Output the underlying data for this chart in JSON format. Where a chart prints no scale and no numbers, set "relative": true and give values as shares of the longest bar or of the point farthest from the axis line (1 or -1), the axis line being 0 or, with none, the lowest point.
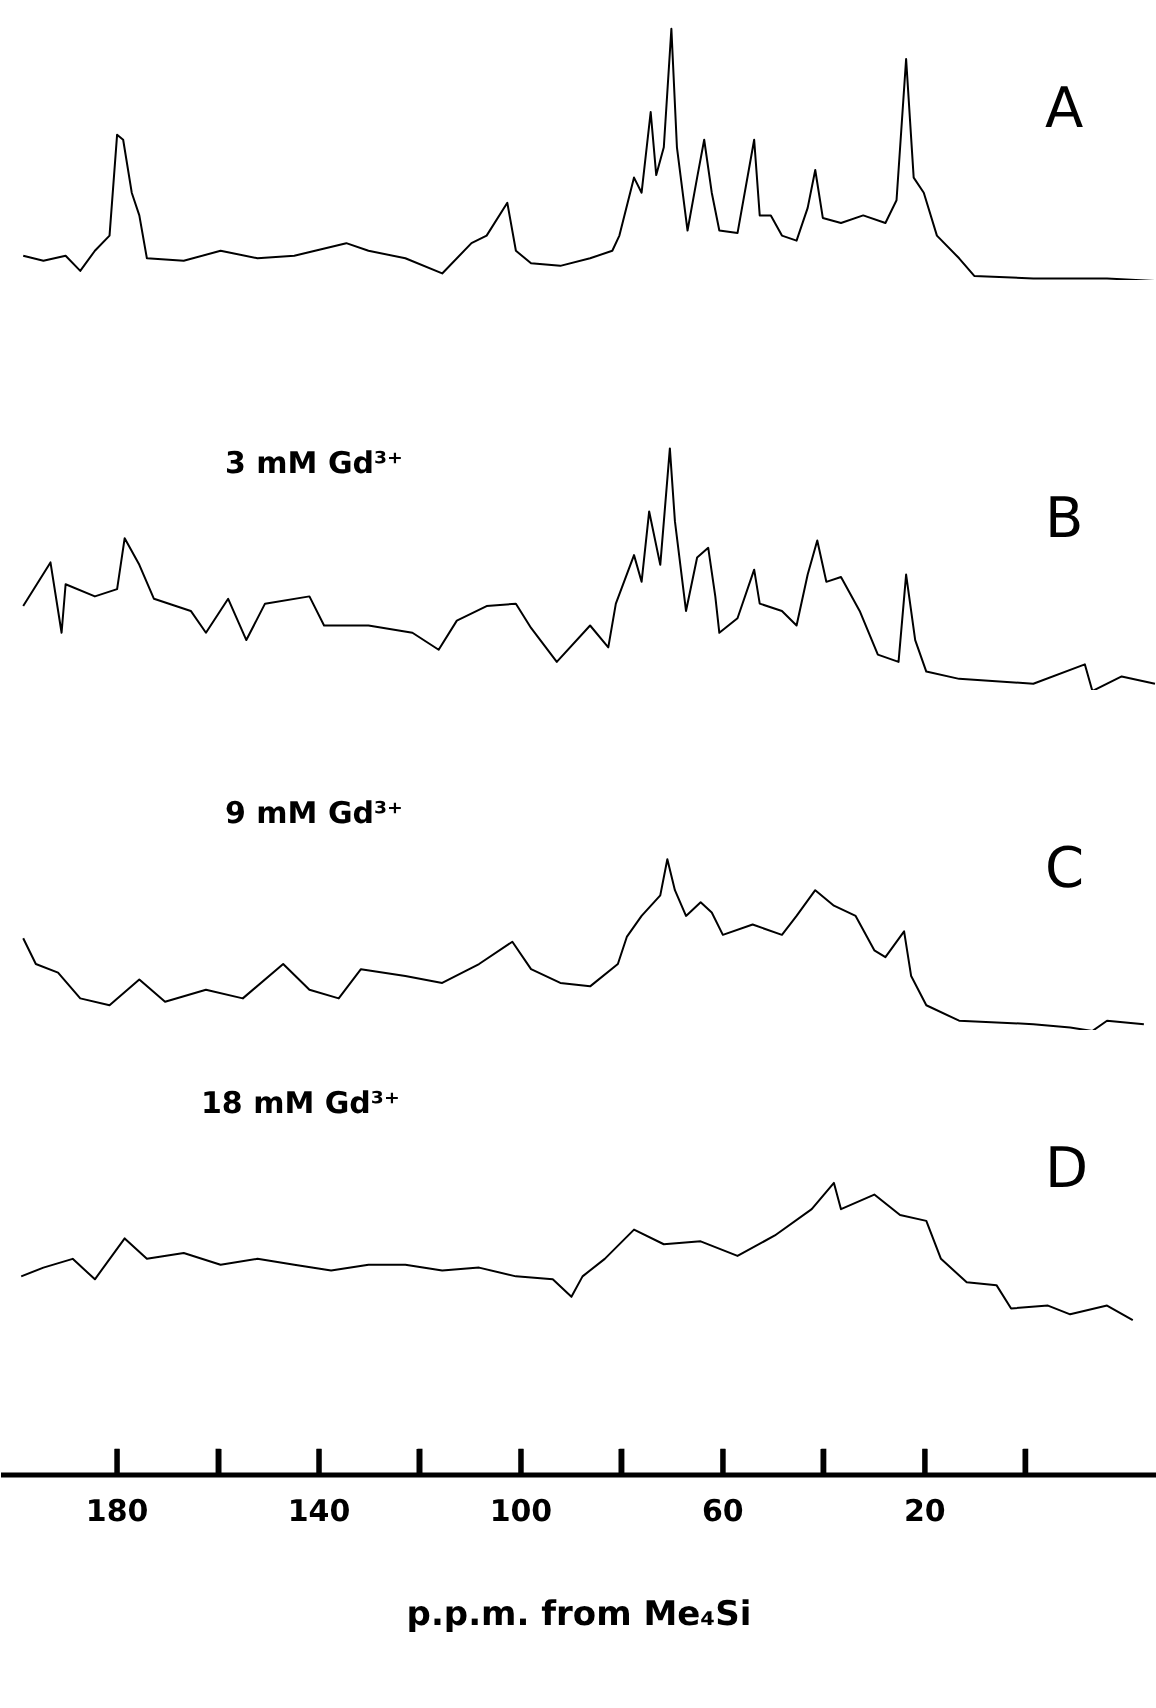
{
  "chart_data": [
    {
      "type": "line",
      "relative": true,
      "tick_labels": false,
      "xlim": [
        203,
        -26
      ],
      "annotations": [
        "A"
      ],
      "x": [
        198.6,
        194.6,
        190.2,
        187.3,
        184.4,
        181.5,
        180,
        178.8,
        177.1,
        175.6,
        174.1,
        166.8,
        159.5,
        152.2,
        144.9,
        134.6,
        130.2,
        122.9,
        115.6,
        109.8,
        106.8,
        102.7,
        101.0,
        98.0,
        92.2,
        86.3,
        81.9,
        80.5,
        77.6,
        76.1,
        74.3,
        73.2,
        71.7,
        70.2,
        69.1,
        67.0,
        65.1,
        63.7,
        62.2,
        60.7,
        57.1,
        53.8,
        52.7,
        50.5,
        48.3,
        45.4,
        43.2,
        41.7,
        40.2,
        36.6,
        32.2,
        27.8,
        25.6,
        23.7,
        22.2,
        20.2,
        17.6,
        13.2,
        10.2,
        -1.5,
        -16.1,
        -25.6
      ],
      "series": [
        {
          "color": "#000000",
          "values": [
            0.1,
            0.08,
            0.1,
            0.04,
            0.12,
            0.18,
            0.58,
            0.56,
            0.35,
            0.26,
            0.09,
            0.08,
            0.12,
            0.09,
            0.1,
            0.15,
            0.12,
            0.09,
            0.03,
            0.15,
            0.18,
            0.31,
            0.12,
            0.07,
            0.06,
            0.09,
            0.12,
            0.18,
            0.41,
            0.35,
            0.67,
            0.42,
            0.53,
            1,
            0.53,
            0.2,
            0.41,
            0.56,
            0.35,
            0.2,
            0.19,
            0.56,
            0.26,
            0.26,
            0.18,
            0.16,
            0.29,
            0.44,
            0.25,
            0.23,
            0.26,
            0.23,
            0.32,
            0.88,
            0.41,
            0.35,
            0.18,
            0.09,
            0.02,
            0.01,
            0.01,
            0
          ]
        }
      ]
    },
    {
      "type": "line",
      "relative": true,
      "tick_labels": false,
      "xlim": [
        203,
        -26
      ],
      "annotations": [
        "B",
        "3 mM Gd³⁺"
      ],
      "x": [
        198.6,
        193.2,
        191.0,
        190.2,
        184.4,
        180,
        178.5,
        175.6,
        172.7,
        165.4,
        162.4,
        158.0,
        154.4,
        150.7,
        141.9,
        139.0,
        130.2,
        121.5,
        116.3,
        112.7,
        106.8,
        101.0,
        98.0,
        92.9,
        86.3,
        82.7,
        81.2,
        77.6,
        76.1,
        74.6,
        72.4,
        70.5,
        69.5,
        67.3,
        65.1,
        62.9,
        61.5,
        60.7,
        57.1,
        53.8,
        52.7,
        48.3,
        45.4,
        43.2,
        41.3,
        39.5,
        36.6,
        32.9,
        29.3,
        25.2,
        23.7,
        21.9,
        19.7,
        13.2,
        -1.5,
        -11.7,
        -13.2,
        -19.0,
        -25.6
      ],
      "series": [
        {
          "color": "#000000",
          "values": [
            0.35,
            0.53,
            0.24,
            0.44,
            0.39,
            0.42,
            0.63,
            0.52,
            0.38,
            0.33,
            0.24,
            0.38,
            0.21,
            0.36,
            0.39,
            0.27,
            0.27,
            0.24,
            0.17,
            0.29,
            0.35,
            0.36,
            0.26,
            0.12,
            0.27,
            0.18,
            0.36,
            0.56,
            0.45,
            0.74,
            0.52,
            1,
            0.7,
            0.33,
            0.55,
            0.59,
            0.39,
            0.24,
            0.3,
            0.5,
            0.36,
            0.33,
            0.27,
            0.48,
            0.62,
            0.45,
            0.47,
            0.33,
            0.15,
            0.12,
            0.48,
            0.21,
            0.08,
            0.05,
            0.03,
            0.11,
            0,
            0.06,
            0.03
          ]
        }
      ]
    },
    {
      "type": "line",
      "relative": true,
      "tick_labels": false,
      "xlim": [
        203,
        -26
      ],
      "annotations": [
        "C",
        "9 mM Gd³⁺"
      ],
      "x": [
        198.6,
        196.1,
        191.7,
        187.3,
        181.5,
        175.6,
        170.5,
        162.4,
        155.1,
        147.1,
        141.9,
        136.1,
        131.7,
        122.9,
        115.6,
        108.3,
        101.7,
        98.0,
        92.2,
        86.3,
        80.8,
        79.0,
        76.1,
        72.4,
        71.0,
        69.5,
        67.3,
        64.4,
        62.2,
        60.0,
        54.1,
        48.3,
        45.4,
        41.7,
        38.0,
        33.7,
        30.0,
        27.8,
        24.1,
        22.7,
        19.7,
        13.2,
        -1.5,
        -8.8,
        -13.2,
        -16.1,
        -23.4
      ],
      "series": [
        {
          "color": "#000000",
          "values": [
            0.54,
            0.39,
            0.34,
            0.19,
            0.15,
            0.3,
            0.17,
            0.24,
            0.19,
            0.39,
            0.24,
            0.19,
            0.36,
            0.32,
            0.28,
            0.39,
            0.52,
            0.36,
            0.28,
            0.26,
            0.39,
            0.55,
            0.67,
            0.79,
            1,
            0.82,
            0.67,
            0.75,
            0.69,
            0.56,
            0.62,
            0.56,
            0.67,
            0.82,
            0.73,
            0.67,
            0.47,
            0.43,
            0.58,
            0.32,
            0.15,
            0.06,
            0.04,
            0.02,
            0,
            0.06,
            0.04
          ]
        }
      ]
    },
    {
      "type": "line",
      "relative": true,
      "tick_labels": "x",
      "xlim": [
        203,
        -26
      ],
      "xlabel": "p.p.m. from Me₄Si",
      "annotations": [
        "D",
        "18 mM Gd³⁺"
      ],
      "xticks": [
        180,
        {
          "value": 160,
          "label": null
        },
        140,
        {
          "value": 120,
          "label": null
        },
        100,
        {
          "value": 80,
          "label": null
        },
        60,
        {
          "value": 40,
          "label": null
        },
        20,
        {
          "value": 0,
          "label": null
        }
      ],
      "x": [
        199.0,
        194.6,
        188.8,
        184.4,
        178.5,
        174.1,
        166.8,
        159.5,
        152.2,
        144.9,
        137.6,
        130.2,
        122.9,
        115.6,
        108.3,
        101.0,
        93.7,
        90.0,
        87.8,
        83.4,
        77.6,
        71.7,
        64.4,
        57.1,
        49.7,
        42.4,
        38.0,
        36.6,
        30.0,
        24.9,
        19.7,
        16.8,
        11.7,
        5.8,
        2.9,
        -4.4,
        -8.8,
        -16.1,
        -21.2
      ],
      "series": [
        {
          "color": "#000000",
          "values": [
            0.68,
            0.71,
            0.74,
            0.67,
            0.81,
            0.74,
            0.76,
            0.72,
            0.74,
            0.72,
            0.7,
            0.72,
            0.72,
            0.7,
            0.71,
            0.68,
            0.67,
            0.61,
            0.68,
            0.74,
            0.84,
            0.79,
            0.8,
            0.75,
            0.82,
            0.91,
            1,
            0.91,
            0.96,
            0.89,
            0.87,
            0.74,
            0.66,
            0.65,
            0.57,
            0.58,
            0.55,
            0.58,
            0.53
          ]
        }
      ]
    }
  ]
}
